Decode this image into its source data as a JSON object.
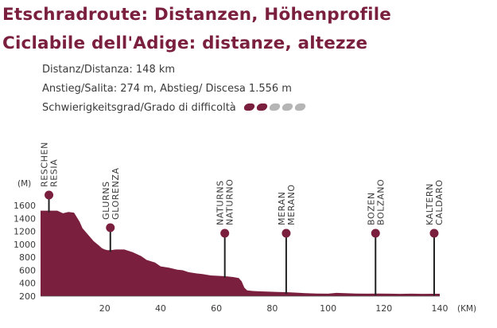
{
  "title_de": "Etschradroute: Distanzen, Höhenprofile",
  "title_it": "Ciclabile dell'Adige: distanze, altezze",
  "distance_text": "Distanz/Distanza: 148 km",
  "climb_text": "Anstieg/Salita: 274 m, Abstieg/ Discesa 1.556 m",
  "difficulty_label": "Schwierigkeitsgrad/Grado di difficoltà",
  "difficulty": {
    "level": 2,
    "max": 5,
    "filled_color": "#7a1f3d",
    "empty_color": "#b5b5b5"
  },
  "colors": {
    "profile": "#7a1f3d",
    "text": "#3a3a3a",
    "accent": "#7a1f3d"
  },
  "chart_data": {
    "type": "area",
    "ylabel": "(M)",
    "xlabel": "(KM)",
    "xlim": [
      -3,
      140
    ],
    "ylim": [
      200,
      1700
    ],
    "xticks": [
      20,
      40,
      60,
      80,
      100,
      120,
      140
    ],
    "yticks": [
      200,
      400,
      600,
      800,
      1000,
      1200,
      1400,
      1600
    ],
    "x": [
      -3,
      0,
      3,
      5,
      7,
      9,
      11,
      12,
      14,
      16,
      18,
      19,
      20,
      21,
      22,
      24,
      27,
      30,
      33,
      35,
      38,
      40,
      43,
      46,
      48,
      50,
      53,
      55,
      58,
      60,
      62,
      64,
      66,
      68,
      69,
      70,
      71,
      73,
      75,
      78,
      82,
      85,
      88,
      92,
      96,
      100,
      103,
      106,
      110,
      114,
      118,
      122,
      126,
      130,
      134,
      137,
      140
    ],
    "y": [
      1520,
      1520,
      1520,
      1480,
      1500,
      1490,
      1350,
      1250,
      1150,
      1050,
      980,
      940,
      920,
      910,
      910,
      920,
      920,
      880,
      820,
      760,
      720,
      660,
      640,
      610,
      600,
      570,
      550,
      540,
      520,
      515,
      510,
      505,
      495,
      480,
      430,
      330,
      290,
      280,
      275,
      270,
      265,
      262,
      255,
      245,
      240,
      238,
      250,
      245,
      240,
      238,
      240,
      238,
      236,
      238,
      236,
      237,
      237
    ],
    "places": [
      {
        "name": "RESCHEN",
        "name2": "RESIA",
        "km": 0,
        "elevation": 1520
      },
      {
        "name": "GLURNS",
        "name2": "GLORENZA",
        "km": 22,
        "elevation": 910
      },
      {
        "name": "NATURNS",
        "name2": "NATURNO",
        "km": 63,
        "elevation": 510
      },
      {
        "name": "MERAN",
        "name2": "MERANO",
        "km": 85,
        "elevation": 262
      },
      {
        "name": "BOZEN",
        "name2": "BOLZANO",
        "km": 117,
        "elevation": 240
      },
      {
        "name": "KALTERN",
        "name2": "CALDARO",
        "km": 138,
        "elevation": 237
      }
    ]
  }
}
